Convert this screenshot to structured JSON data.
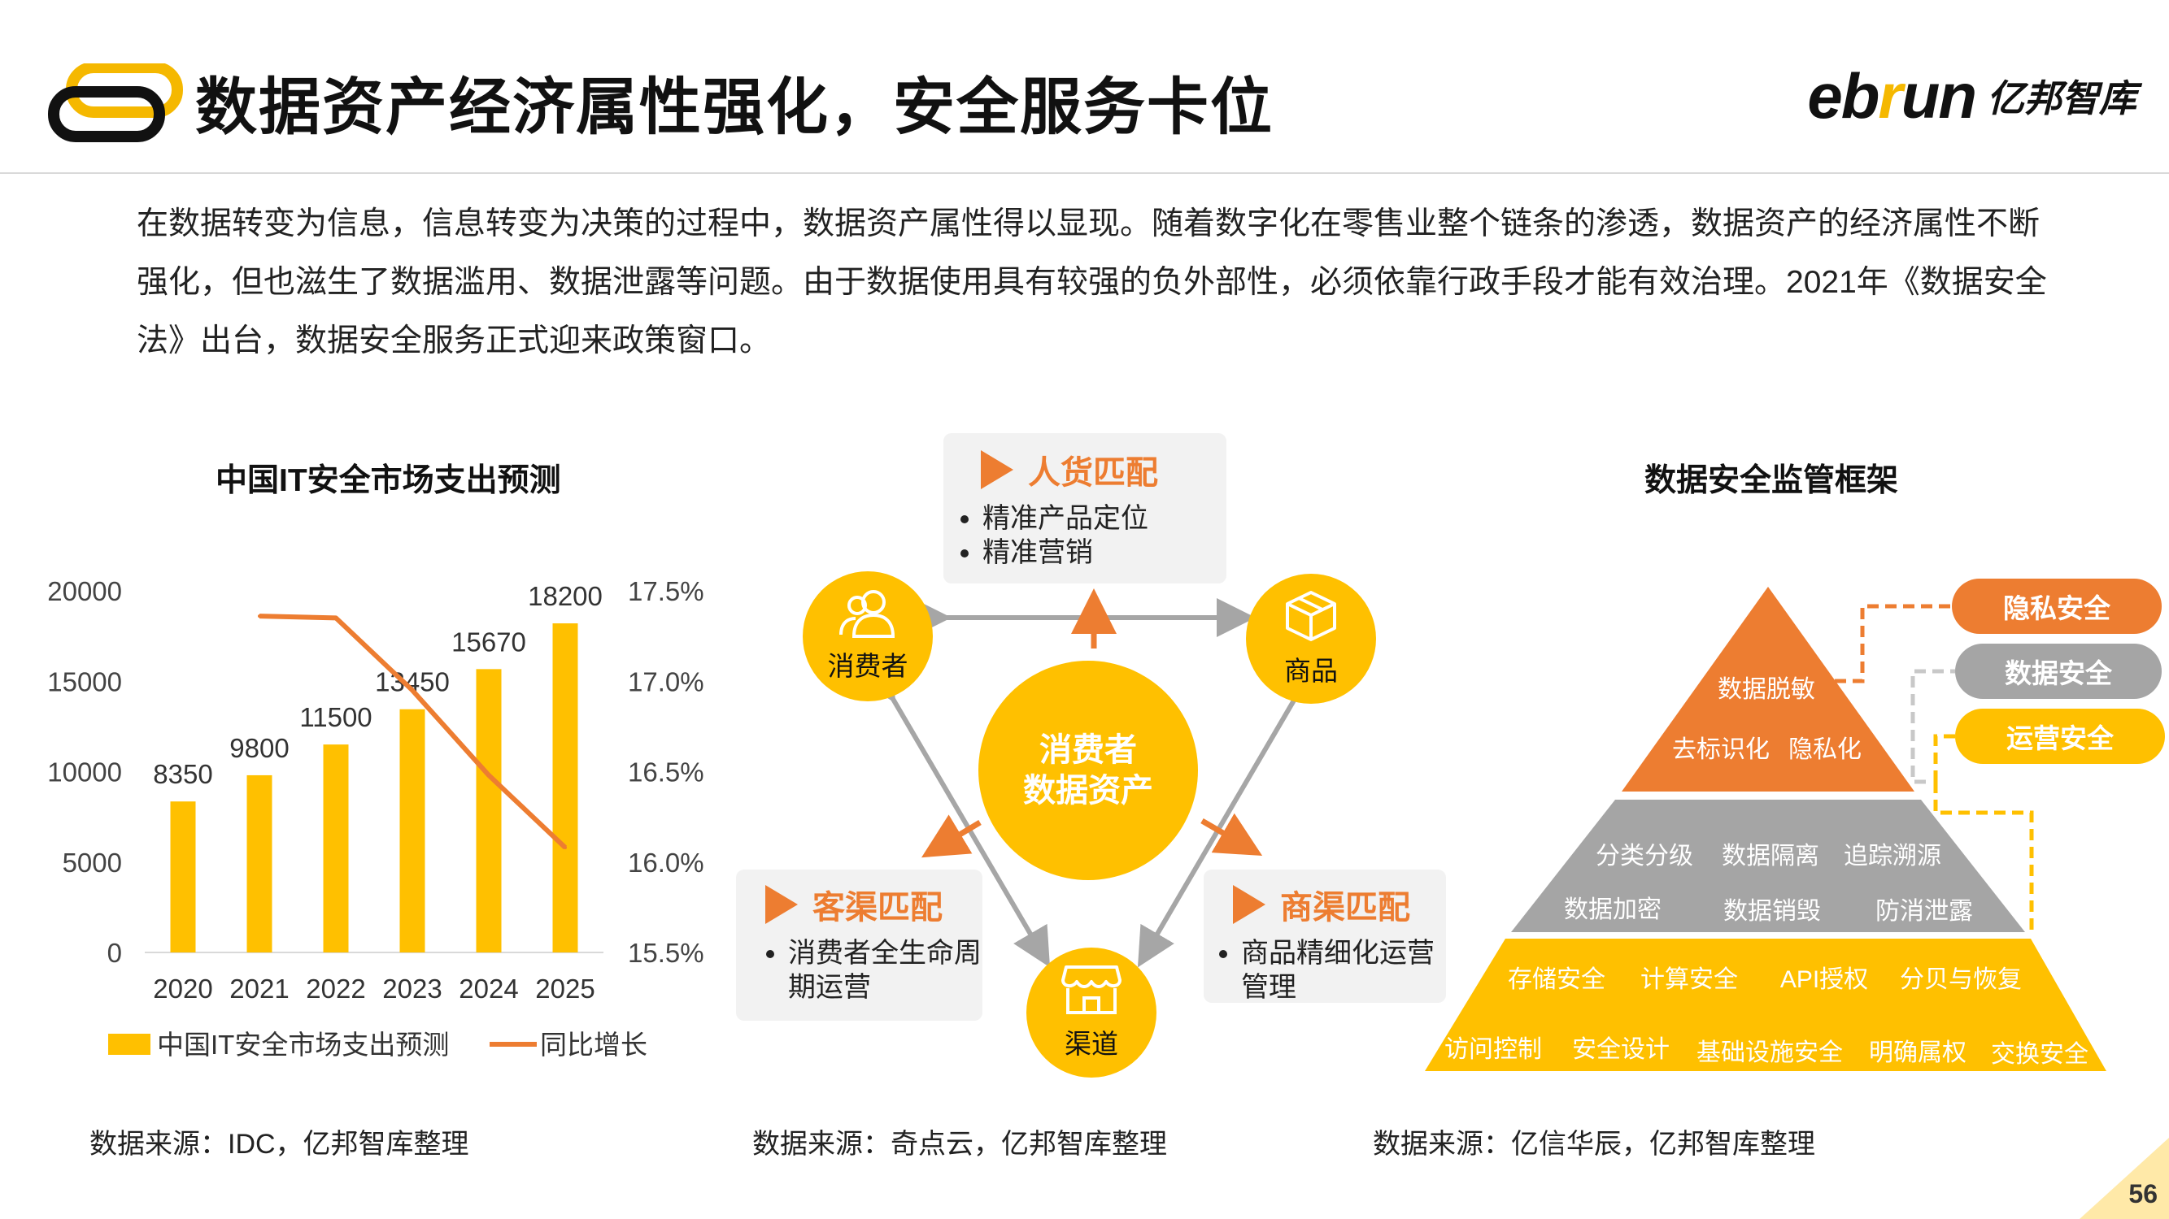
{
  "header": {
    "title": "数据资产经济属性强化，安全服务卡位",
    "brand_latin_a": "eb",
    "brand_latin_u": "r",
    "brand_latin_b": "un",
    "brand_cn": "亿邦智库"
  },
  "intro": "在数据转变为信息，信息转变为决策的过程中，数据资产属性得以显现。随着数字化在零售业整个链条的渗透，数据资产的经济属性不断强化，但也滋生了数据滥用、数据泄露等问题。由于数据使用具有较强的负外部性，必须依靠行政手段才能有效治理。2021年《数据安全法》出台，数据安全服务正式迎来政策窗口。",
  "chart_data": {
    "type": "bar",
    "title": "中国IT安全市场支出预测",
    "categories": [
      "2020",
      "2021",
      "2022",
      "2023",
      "2024",
      "2025"
    ],
    "series": [
      {
        "name": "中国IT安全市场支出预测",
        "type": "bar",
        "axis": "left",
        "values": [
          8350,
          9800,
          11500,
          13450,
          15670,
          18200
        ],
        "color": "#FFC000"
      },
      {
        "name": "同比增长",
        "type": "line",
        "axis": "right",
        "values": [
          null,
          17.36,
          17.35,
          16.95,
          16.48,
          16.08
        ],
        "color": "#ED7D31"
      }
    ],
    "data_labels": [
      "8350",
      "9800",
      "11500",
      "13450",
      "15670",
      "18200"
    ],
    "y_left": {
      "min": 0,
      "max": 20000,
      "ticks": [
        "0",
        "5000",
        "10000",
        "15000",
        "20000"
      ]
    },
    "y_right": {
      "min": 15.5,
      "max": 17.5,
      "ticks": [
        "15.5%",
        "16.0%",
        "16.5%",
        "17.0%",
        "17.5%"
      ]
    },
    "legend": [
      "中国IT安全市场支出预测",
      "同比增长"
    ],
    "source": "数据来源：IDC，亿邦智库整理"
  },
  "diagram": {
    "center": [
      "消费者",
      "数据资产"
    ],
    "nodes": {
      "consumer": "消费者",
      "product": "商品",
      "channel": "渠道"
    },
    "panels": {
      "top": {
        "title": "人货匹配",
        "items": [
          "精准产品定位",
          "精准营销"
        ]
      },
      "left": {
        "title": "客渠匹配",
        "items": [
          "消费者全生命周期运营"
        ]
      },
      "right": {
        "title": "商渠匹配",
        "items": [
          "商品精细化运营管理"
        ]
      }
    },
    "source": "数据来源：奇点云，亿邦智库整理"
  },
  "framework": {
    "title": "数据安全监管框架",
    "top_layer": [
      "数据脱敏",
      "去标识化",
      "隐私化"
    ],
    "middle_layer": [
      "分类分级",
      "数据隔离",
      "追踪溯源",
      "数据加密",
      "数据销毁",
      "防消泄露"
    ],
    "bottom_layer": [
      "存储安全",
      "计算安全",
      "API授权",
      "分贝与恢复",
      "访问控制",
      "安全设计",
      "基础设施安全",
      "明确属权",
      "交换安全"
    ],
    "tags": [
      "隐私安全",
      "数据安全",
      "运营安全"
    ],
    "colors": {
      "top": "#ED7D31",
      "middle": "#A5A5A5",
      "bottom": "#FFC000"
    },
    "source": "数据来源：亿信华辰，亿邦智库整理"
  },
  "page_number": "56"
}
